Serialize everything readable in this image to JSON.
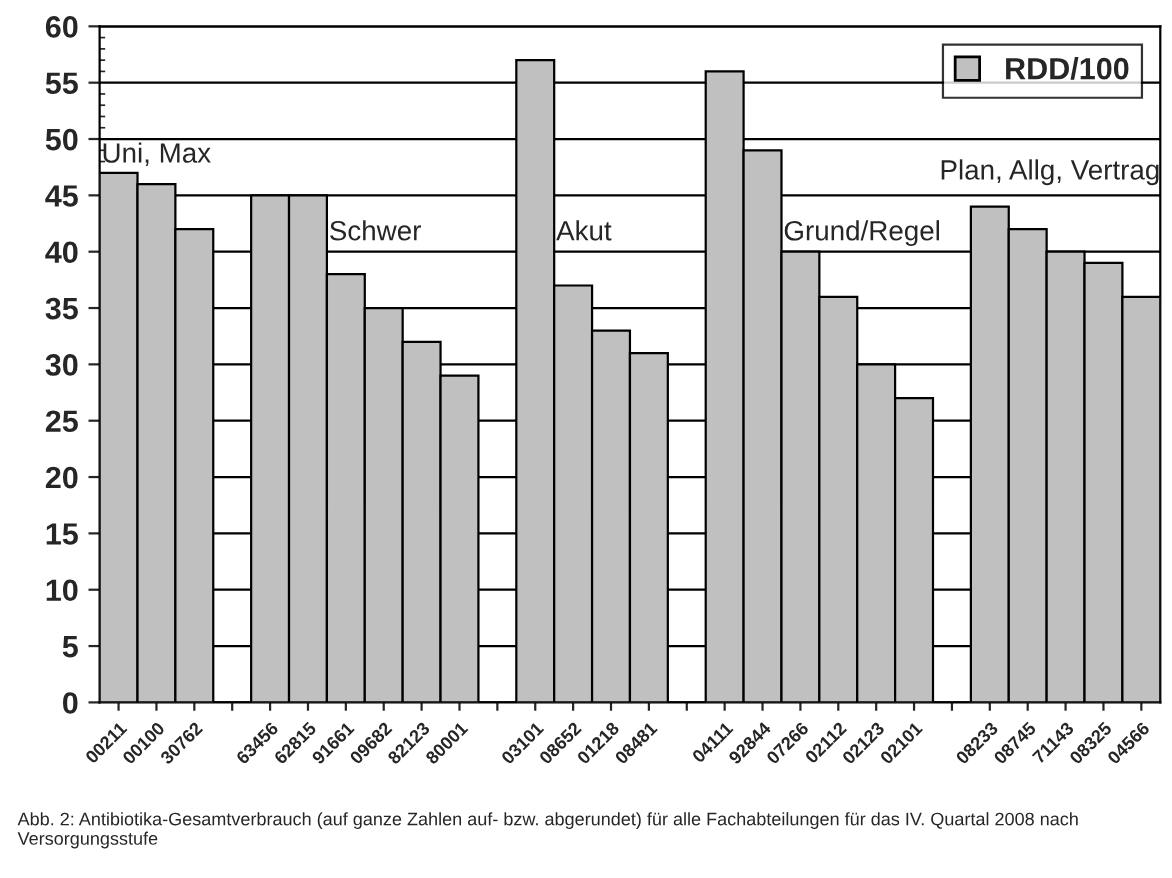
{
  "chart_data": {
    "type": "bar",
    "categories": [
      "00211",
      "00100",
      "30762",
      null,
      "63456",
      "62815",
      "91661",
      "09682",
      "82123",
      "80001",
      null,
      "03101",
      "08652",
      "01218",
      "08481",
      null,
      "04111",
      "92844",
      "07266",
      "02112",
      "02123",
      "02101",
      null,
      "08233",
      "08745",
      "71143",
      "08325",
      "04566"
    ],
    "series": [
      {
        "name": "RDD/100",
        "color": "#c0c0c0",
        "values": [
          47,
          46,
          42,
          null,
          45,
          45,
          38,
          35,
          32,
          29,
          null,
          57,
          37,
          33,
          31,
          null,
          56,
          49,
          40,
          36,
          30,
          27,
          null,
          44,
          42,
          40,
          39,
          36
        ]
      }
    ],
    "ylim": [
      0,
      60
    ],
    "yticks": [
      0,
      5,
      10,
      15,
      20,
      25,
      30,
      35,
      40,
      45,
      50,
      55,
      60
    ],
    "grid": "y",
    "legend": "top right",
    "annotations": [
      "Uni, Max",
      "Schwer",
      "Akut",
      "Grund/Regel",
      "Plan, Allg, Vertrag",
      "Abb. 2: Antibiotika-Gesamtverbrauch (auf ganze Zahlen auf- bzw. abgerundet) für alle Fachabteilungen für das IV. Quartal 2008 nach Versorgungsstufe"
    ]
  }
}
